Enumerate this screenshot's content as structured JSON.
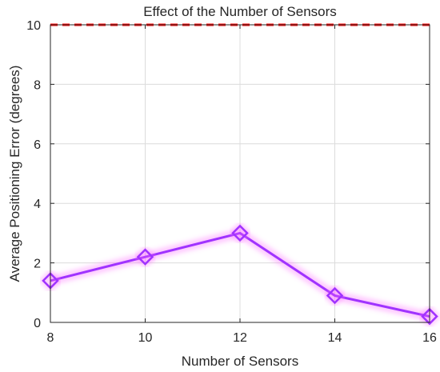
{
  "chart_data": {
    "type": "line",
    "title": "Effect of the Number of Sensors",
    "xlabel": "Number of Sensors",
    "ylabel": "Average Positioning Error (degrees)",
    "xlim": [
      8,
      16
    ],
    "ylim": [
      0,
      10
    ],
    "xticks": [
      8,
      10,
      12,
      14,
      16
    ],
    "yticks": [
      0,
      2,
      4,
      6,
      8,
      10
    ],
    "grid": true,
    "legend": "none",
    "series": [
      {
        "x": [
          8,
          10,
          12,
          14,
          16
        ],
        "values": [
          1.4,
          2.2,
          3.0,
          0.9,
          0.2
        ],
        "marker": "diamond",
        "color": "#a033ff",
        "glow_color": "#ff66ff"
      }
    ],
    "reference_line": {
      "y": 10,
      "style": "dashed",
      "color": "#ff0000"
    }
  }
}
